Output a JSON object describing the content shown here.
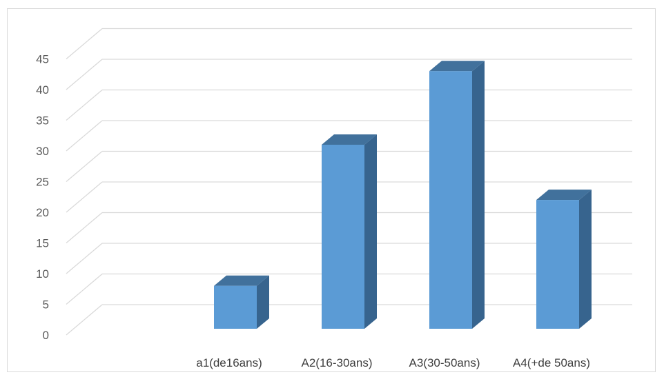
{
  "chart_data": {
    "type": "bar",
    "categories": [
      "a1(de16ans)",
      "A2(16-30ans)",
      "A3(30-50ans)",
      "A4(+de 50ans)"
    ],
    "values": [
      7,
      30,
      42,
      21
    ],
    "ylim": [
      0,
      45
    ],
    "yticks": [
      "0",
      "5",
      "10",
      "15",
      "20",
      "25",
      "30",
      "35",
      "40",
      "45"
    ],
    "grid": true,
    "legend": "none",
    "title": "",
    "xlabel": "",
    "ylabel": "",
    "colors": {
      "bar_front": "#5b9bd5",
      "bar_side": "#37648e",
      "bar_top": "#41719c",
      "grid": "#d9d9d9"
    }
  }
}
